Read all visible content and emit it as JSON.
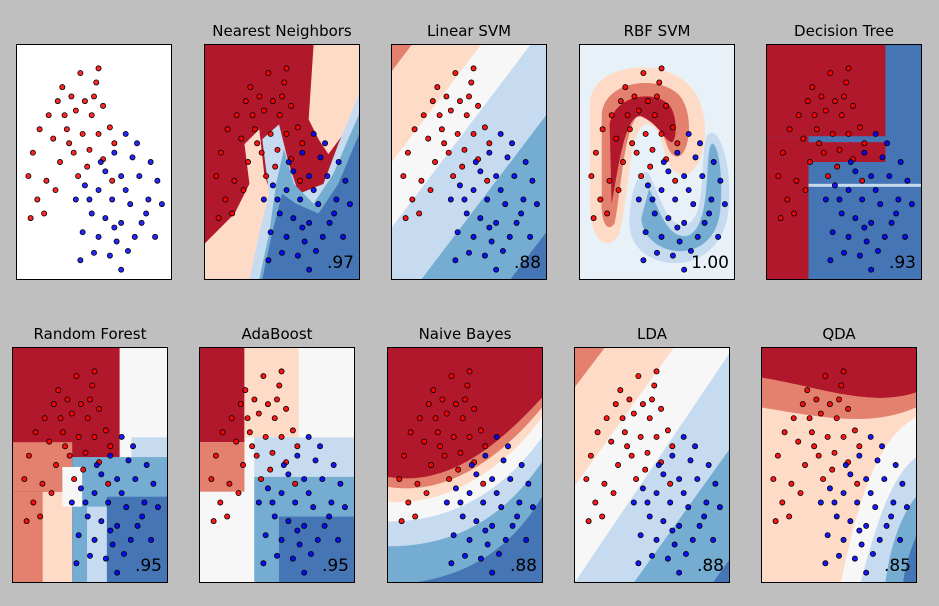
{
  "chart_data": {
    "type": "scatter",
    "classes": [
      {
        "label": "red",
        "color": "#ff0000",
        "edge": "#000000"
      },
      {
        "label": "blue",
        "color": "#0000ff",
        "edge": "#000000"
      }
    ],
    "xlim": [
      -1.2,
      2.2
    ],
    "ylim": [
      -1.0,
      1.5
    ],
    "cmap": [
      "#4575b4",
      "#74add1",
      "#c6dbef",
      "#f7f7f7",
      "#fddbc7",
      "#e4806e",
      "#b2182b"
    ],
    "points_red": [
      [
        0.2,
        1.2
      ],
      [
        -0.2,
        1.05
      ],
      [
        0.55,
        1.1
      ],
      [
        0.0,
        0.95
      ],
      [
        -0.3,
        0.9
      ],
      [
        0.3,
        0.9
      ],
      [
        0.7,
        0.85
      ],
      [
        0.1,
        0.8
      ],
      [
        -0.5,
        0.75
      ],
      [
        0.45,
        0.75
      ],
      [
        -0.7,
        0.6
      ],
      [
        0.85,
        0.62
      ],
      [
        -0.1,
        0.6
      ],
      [
        0.25,
        0.55
      ],
      [
        0.6,
        0.55
      ],
      [
        -0.4,
        0.5
      ],
      [
        0.95,
        0.45
      ],
      [
        -0.85,
        0.35
      ],
      [
        0.05,
        0.35
      ],
      [
        0.4,
        0.38
      ],
      [
        -0.25,
        0.25
      ],
      [
        0.7,
        0.28
      ],
      [
        -0.95,
        0.1
      ],
      [
        0.15,
        0.1
      ],
      [
        -0.55,
        0.05
      ],
      [
        0.9,
        0.05
      ],
      [
        -0.75,
        -0.15
      ],
      [
        -0.35,
        -0.05
      ],
      [
        -0.9,
        -0.35
      ],
      [
        -0.6,
        -0.3
      ],
      [
        0.6,
        1.25
      ],
      [
        -0.05,
        0.45
      ],
      [
        0.35,
        0.2
      ],
      [
        -0.15,
        0.75
      ],
      [
        0.5,
        0.95
      ]
    ],
    "points_blue": [
      [
        1.2,
        0.55
      ],
      [
        0.95,
        0.35
      ],
      [
        1.35,
        0.3
      ],
      [
        0.75,
        0.15
      ],
      [
        1.1,
        0.1
      ],
      [
        1.5,
        0.1
      ],
      [
        0.3,
        0.0
      ],
      [
        0.6,
        -0.05
      ],
      [
        1.9,
        0.05
      ],
      [
        0.1,
        -0.15
      ],
      [
        0.9,
        -0.15
      ],
      [
        1.3,
        -0.2
      ],
      [
        1.7,
        -0.15
      ],
      [
        0.45,
        -0.3
      ],
      [
        0.75,
        -0.35
      ],
      [
        1.1,
        -0.4
      ],
      [
        1.55,
        -0.4
      ],
      [
        0.25,
        -0.5
      ],
      [
        0.6,
        -0.55
      ],
      [
        1.0,
        -0.6
      ],
      [
        1.4,
        -0.55
      ],
      [
        1.85,
        -0.55
      ],
      [
        0.85,
        -0.75
      ],
      [
        1.25,
        -0.7
      ],
      [
        0.5,
        -0.72
      ],
      [
        1.65,
        -0.3
      ],
      [
        0.2,
        -0.8
      ],
      [
        1.1,
        -0.9
      ],
      [
        2.0,
        -0.2
      ],
      [
        0.4,
        -0.15
      ],
      [
        1.45,
        0.45
      ],
      [
        0.65,
        0.25
      ],
      [
        1.2,
        -0.05
      ],
      [
        0.95,
        -0.45
      ],
      [
        1.75,
        0.25
      ]
    ],
    "panels": [
      {
        "title": "",
        "score": "",
        "boundary": "none"
      },
      {
        "title": "Nearest Neighbors",
        "score": ".97",
        "boundary": "knn"
      },
      {
        "title": "Linear SVM",
        "score": ".88",
        "boundary": "linear"
      },
      {
        "title": "RBF SVM",
        "score": "1.00",
        "boundary": "rbf"
      },
      {
        "title": "Decision Tree",
        "score": ".93",
        "boundary": "tree"
      },
      {
        "title": "Random Forest",
        "score": ".95",
        "boundary": "forest"
      },
      {
        "title": "AdaBoost",
        "score": ".95",
        "boundary": "adaboost"
      },
      {
        "title": "Naive Bayes",
        "score": ".88",
        "boundary": "bayes"
      },
      {
        "title": "LDA",
        "score": ".88",
        "boundary": "lda"
      },
      {
        "title": "QDA",
        "score": ".85",
        "boundary": "qda"
      }
    ]
  }
}
